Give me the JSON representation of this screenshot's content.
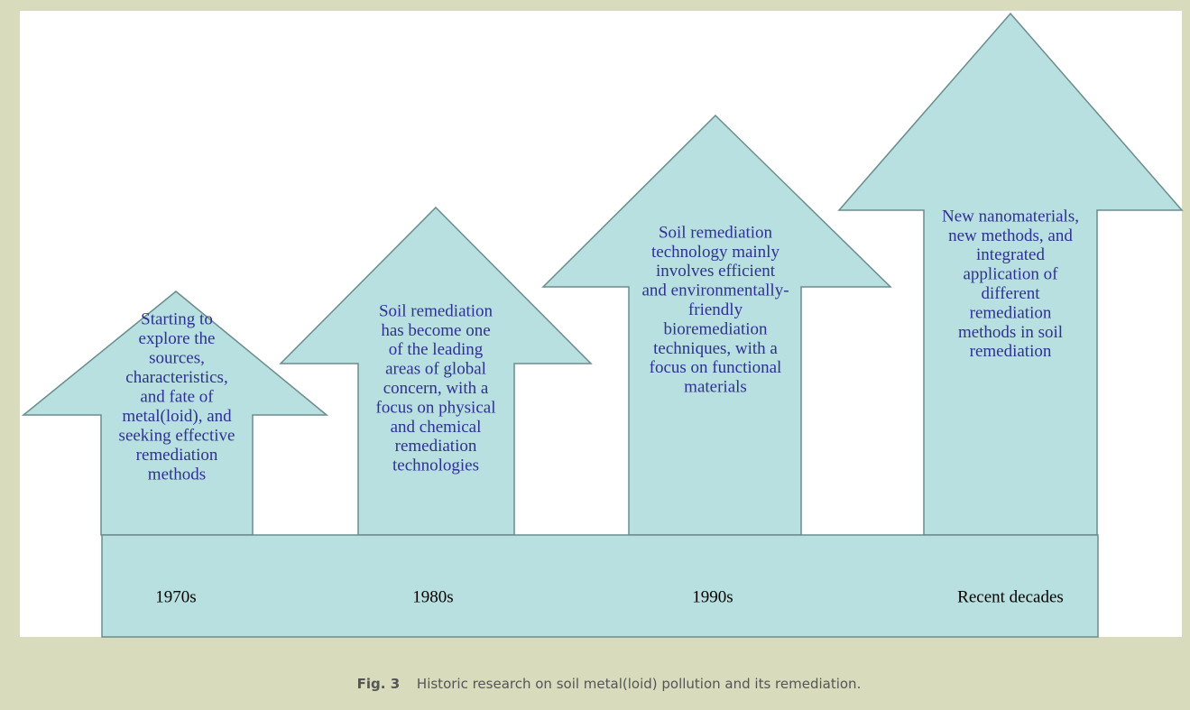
{
  "stages": [
    {
      "lines": [
        "Starting to",
        "explore the",
        "sources,",
        "characteristics,",
        "and fate of",
        "metal(loid), and",
        "seeking effective",
        "remediation",
        "methods"
      ],
      "label": "1970s"
    },
    {
      "lines": [
        "Soil remediation",
        "has become one",
        "of the leading",
        "areas of global",
        "concern, with a",
        "focus on physical",
        "and chemical",
        "remediation",
        "technologies"
      ],
      "label": "1980s"
    },
    {
      "lines": [
        "Soil remediation",
        "technology mainly",
        "involves efficient",
        "and environmentally-",
        "friendly",
        "bioremediation",
        "techniques, with a",
        "focus on functional",
        "materials"
      ],
      "label": "1990s"
    },
    {
      "lines": [
        "New nanomaterials,",
        "new methods, and",
        "integrated",
        "application of",
        "different",
        "remediation",
        "methods in soil",
        "remediation"
      ],
      "label": "Recent decades"
    }
  ],
  "caption": {
    "label": "Fig. 3",
    "text": "Historic research on soil metal(loid) pollution and its remediation."
  }
}
